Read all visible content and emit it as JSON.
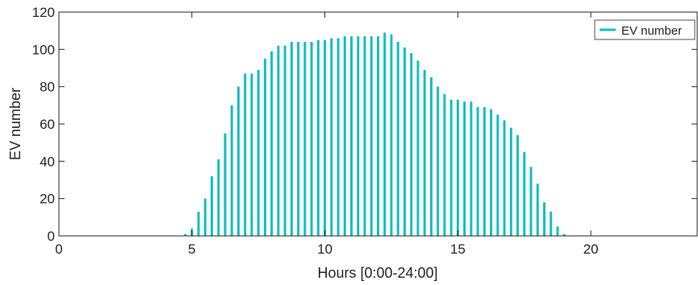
{
  "chart_data": {
    "type": "bar",
    "xlabel": "Hours [0:00-24:00]",
    "ylabel": "EV number",
    "xlim": [
      0,
      24
    ],
    "ylim": [
      0,
      120
    ],
    "xticks": [
      0,
      5,
      10,
      15,
      20
    ],
    "yticks": [
      0,
      20,
      40,
      60,
      80,
      100,
      120
    ],
    "grid": false,
    "legend": {
      "position": "top-right",
      "entries": [
        "EV number"
      ]
    },
    "series": [
      {
        "name": "EV number",
        "color": "#17BEBF",
        "x": [
          4.75,
          5.0,
          5.25,
          5.5,
          5.75,
          6.0,
          6.25,
          6.5,
          6.75,
          7.0,
          7.25,
          7.5,
          7.75,
          8.0,
          8.25,
          8.5,
          8.75,
          9.0,
          9.25,
          9.5,
          9.75,
          10.0,
          10.25,
          10.5,
          10.75,
          11.0,
          11.25,
          11.5,
          11.75,
          12.0,
          12.25,
          12.5,
          12.75,
          13.0,
          13.25,
          13.5,
          13.75,
          14.0,
          14.25,
          14.5,
          14.75,
          15.0,
          15.25,
          15.5,
          15.75,
          16.0,
          16.25,
          16.5,
          16.75,
          17.0,
          17.25,
          17.5,
          17.75,
          18.0,
          18.25,
          18.5,
          18.75,
          19.0
        ],
        "values": [
          1,
          4,
          13,
          20,
          32,
          41,
          55,
          70,
          80,
          87,
          87,
          89,
          95,
          99,
          102,
          102,
          104,
          104,
          104,
          104,
          105,
          105,
          106,
          106,
          107,
          107,
          107,
          107,
          107,
          107,
          109,
          108,
          104,
          101,
          98,
          94,
          89,
          85,
          80,
          76,
          73,
          73,
          72,
          72,
          69,
          69,
          68,
          65,
          62,
          58,
          54,
          45,
          37,
          28,
          18,
          13,
          5,
          1
        ]
      }
    ]
  }
}
